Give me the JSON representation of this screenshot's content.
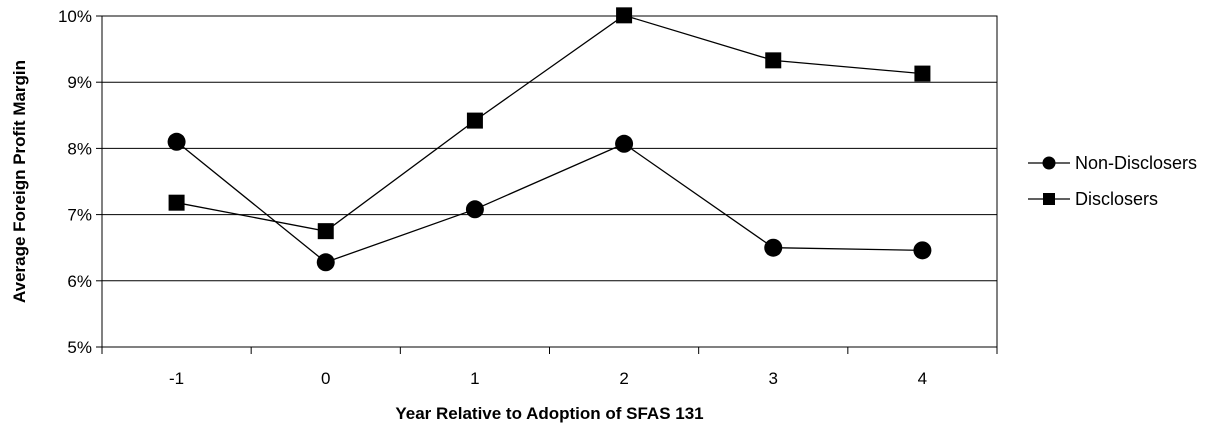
{
  "chart_data": {
    "type": "line",
    "title": "",
    "xlabel": "Year Relative to Adoption of SFAS 131",
    "ylabel": "Average Foreign Profit Margin",
    "categories": [
      "-1",
      "0",
      "1",
      "2",
      "3",
      "4"
    ],
    "ylim": [
      0.05,
      0.1
    ],
    "yticks": [
      0.05,
      0.06,
      0.07,
      0.08,
      0.09,
      0.1
    ],
    "ytick_labels": [
      "5%",
      "6%",
      "7%",
      "8%",
      "9%",
      "10%"
    ],
    "grid": "horizontal",
    "legend_position": "right",
    "series": [
      {
        "name": "Non-Disclosers",
        "marker": "circle",
        "color": "#000000",
        "values": [
          0.081,
          0.0628,
          0.0708,
          0.0807,
          0.065,
          0.0646
        ]
      },
      {
        "name": "Disclosers",
        "marker": "square",
        "color": "#000000",
        "values": [
          0.0718,
          0.0675,
          0.0842,
          0.1001,
          0.0933,
          0.0913
        ]
      }
    ]
  }
}
